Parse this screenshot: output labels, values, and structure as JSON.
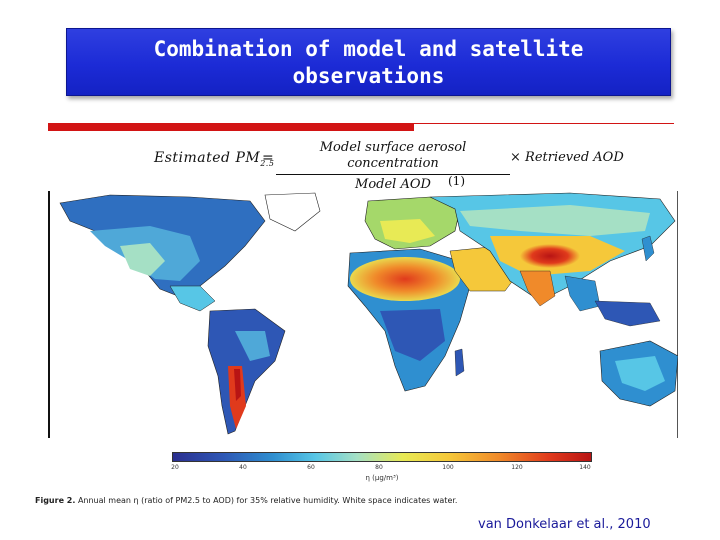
{
  "slide": {
    "title_line1": "Combination of model and satellite",
    "title_line2": "observations"
  },
  "equation": {
    "lhs": "Estimated PM",
    "lhs_sub": "2.5",
    "equals": "=",
    "numerator": "Model surface aerosol concentration",
    "denominator": "Model AOD",
    "rhs": "× Retrieved AOD",
    "number": "(1)"
  },
  "figure": {
    "colorbar": {
      "ticks": [
        "20",
        "40",
        "60",
        "80",
        "100",
        "120",
        "140"
      ],
      "label": "η (µg/m³)"
    },
    "caption_lead": "Figure 2.",
    "caption_text": "Annual mean η (ratio of PM2.5 to AOD) for 35% relative humidity. White space indicates water."
  },
  "citation": "van Donkelaar et al., 2010",
  "colors": {
    "title_bg": "#1c2bd6",
    "accent_red": "#d21414",
    "citation": "#1a1a9a"
  }
}
